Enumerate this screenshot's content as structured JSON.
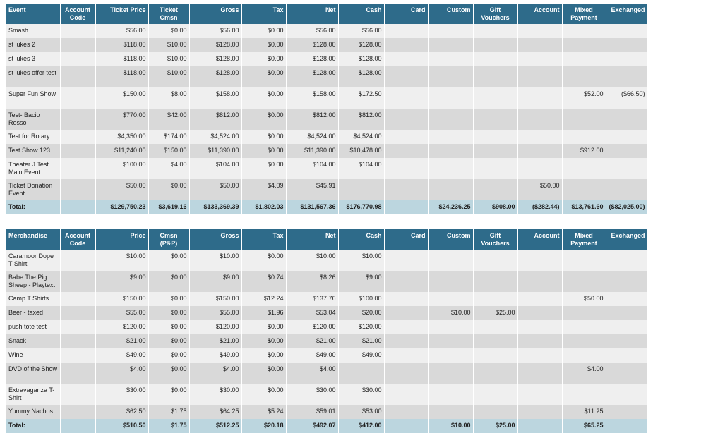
{
  "event_table": {
    "headers": [
      "Event",
      "Account\nCode",
      "Ticket Price",
      "Ticket\nCmsn",
      "Gross",
      "Tax",
      "Net",
      "Cash",
      "Card",
      "Custom",
      "Gift\nVouchers",
      "Account",
      "Mixed\nPayment",
      "Exchanged"
    ],
    "rows": [
      [
        "Smash",
        "",
        "$56.00",
        "$0.00",
        "$56.00",
        "$0.00",
        "$56.00",
        "$56.00",
        "",
        "",
        "",
        "",
        "",
        ""
      ],
      [
        "st lukes 2",
        "",
        "$118.00",
        "$10.00",
        "$128.00",
        "$0.00",
        "$128.00",
        "$128.00",
        "",
        "",
        "",
        "",
        "",
        ""
      ],
      [
        "st lukes 3",
        "",
        "$118.00",
        "$10.00",
        "$128.00",
        "$0.00",
        "$128.00",
        "$128.00",
        "",
        "",
        "",
        "",
        "",
        ""
      ],
      [
        "st lukes offer test",
        "",
        "$118.00",
        "$10.00",
        "$128.00",
        "$0.00",
        "$128.00",
        "$128.00",
        "",
        "",
        "",
        "",
        "",
        ""
      ],
      [
        "Super Fun Show",
        "",
        "$150.00",
        "$8.00",
        "$158.00",
        "$0.00",
        "$158.00",
        "$172.50",
        "",
        "",
        "",
        "",
        "$52.00",
        "($66.50)"
      ],
      [
        "Test- Bacio Rosso",
        "",
        "$770.00",
        "$42.00",
        "$812.00",
        "$0.00",
        "$812.00",
        "$812.00",
        "",
        "",
        "",
        "",
        "",
        ""
      ],
      [
        "Test for Rotary",
        "",
        "$4,350.00",
        "$174.00",
        "$4,524.00",
        "$0.00",
        "$4,524.00",
        "$4,524.00",
        "",
        "",
        "",
        "",
        "",
        ""
      ],
      [
        "Test Show 123",
        "",
        "$11,240.00",
        "$150.00",
        "$11,390.00",
        "$0.00",
        "$11,390.00",
        "$10,478.00",
        "",
        "",
        "",
        "",
        "$912.00",
        ""
      ],
      [
        "Theater J Test Main Event",
        "",
        "$100.00",
        "$4.00",
        "$104.00",
        "$0.00",
        "$104.00",
        "$104.00",
        "",
        "",
        "",
        "",
        "",
        ""
      ],
      [
        "Ticket Donation Event",
        "",
        "$50.00",
        "$0.00",
        "$50.00",
        "$4.09",
        "$45.91",
        "",
        "",
        "",
        "",
        "$50.00",
        "",
        ""
      ]
    ],
    "tall_rows": [
      3,
      4,
      5,
      8,
      9
    ],
    "total": [
      "Total:",
      "",
      "$129,750.23",
      "$3,619.16",
      "$133,369.39",
      "$1,802.03",
      "$131,567.36",
      "$176,770.98",
      "",
      "$24,236.25",
      "$908.00",
      "($282.44)",
      "$13,761.60",
      "($82,025.00)"
    ]
  },
  "merch_table": {
    "headers": [
      "Merchandise",
      "Account\nCode",
      "Price",
      "Cmsn\n(P&P)",
      "Gross",
      "Tax",
      "Net",
      "Cash",
      "Card",
      "Custom",
      "Gift\nVouchers",
      "Account",
      "Mixed\nPayment",
      "Exchanged"
    ],
    "rows": [
      [
        "Caramoor Dope T Shirt",
        "",
        "$10.00",
        "$0.00",
        "$10.00",
        "$0.00",
        "$10.00",
        "$10.00",
        "",
        "",
        "",
        "",
        "",
        ""
      ],
      [
        "Babe The Pig Sheep - Playtext",
        "",
        "$9.00",
        "$0.00",
        "$9.00",
        "$0.74",
        "$8.26",
        "$9.00",
        "",
        "",
        "",
        "",
        "",
        ""
      ],
      [
        "Camp T Shirts",
        "",
        "$150.00",
        "$0.00",
        "$150.00",
        "$12.24",
        "$137.76",
        "$100.00",
        "",
        "",
        "",
        "",
        "$50.00",
        ""
      ],
      [
        "Beer - taxed",
        "",
        "$55.00",
        "$0.00",
        "$55.00",
        "$1.96",
        "$53.04",
        "$20.00",
        "",
        "$10.00",
        "$25.00",
        "",
        "",
        ""
      ],
      [
        "push tote test",
        "",
        "$120.00",
        "$0.00",
        "$120.00",
        "$0.00",
        "$120.00",
        "$120.00",
        "",
        "",
        "",
        "",
        "",
        ""
      ],
      [
        "Snack",
        "",
        "$21.00",
        "$0.00",
        "$21.00",
        "$0.00",
        "$21.00",
        "$21.00",
        "",
        "",
        "",
        "",
        "",
        ""
      ],
      [
        "Wine",
        "",
        "$49.00",
        "$0.00",
        "$49.00",
        "$0.00",
        "$49.00",
        "$49.00",
        "",
        "",
        "",
        "",
        "",
        ""
      ],
      [
        "DVD of the Show",
        "",
        "$4.00",
        "$0.00",
        "$4.00",
        "$0.00",
        "$4.00",
        "",
        "",
        "",
        "",
        "",
        "$4.00",
        ""
      ],
      [
        "Extravaganza T-Shirt",
        "",
        "$30.00",
        "$0.00",
        "$30.00",
        "$0.00",
        "$30.00",
        "$30.00",
        "",
        "",
        "",
        "",
        "",
        ""
      ],
      [
        "Yummy Nachos",
        "",
        "$62.50",
        "$1.75",
        "$64.25",
        "$5.24",
        "$59.01",
        "$53.00",
        "",
        "",
        "",
        "",
        "$11.25",
        ""
      ]
    ],
    "tall_rows": [
      0,
      1,
      7,
      8
    ],
    "total": [
      "Total:",
      "",
      "$510.50",
      "$1.75",
      "$512.25",
      "$20.18",
      "$492.07",
      "$412.00",
      "",
      "$10.00",
      "$25.00",
      "",
      "$65.25",
      ""
    ]
  }
}
